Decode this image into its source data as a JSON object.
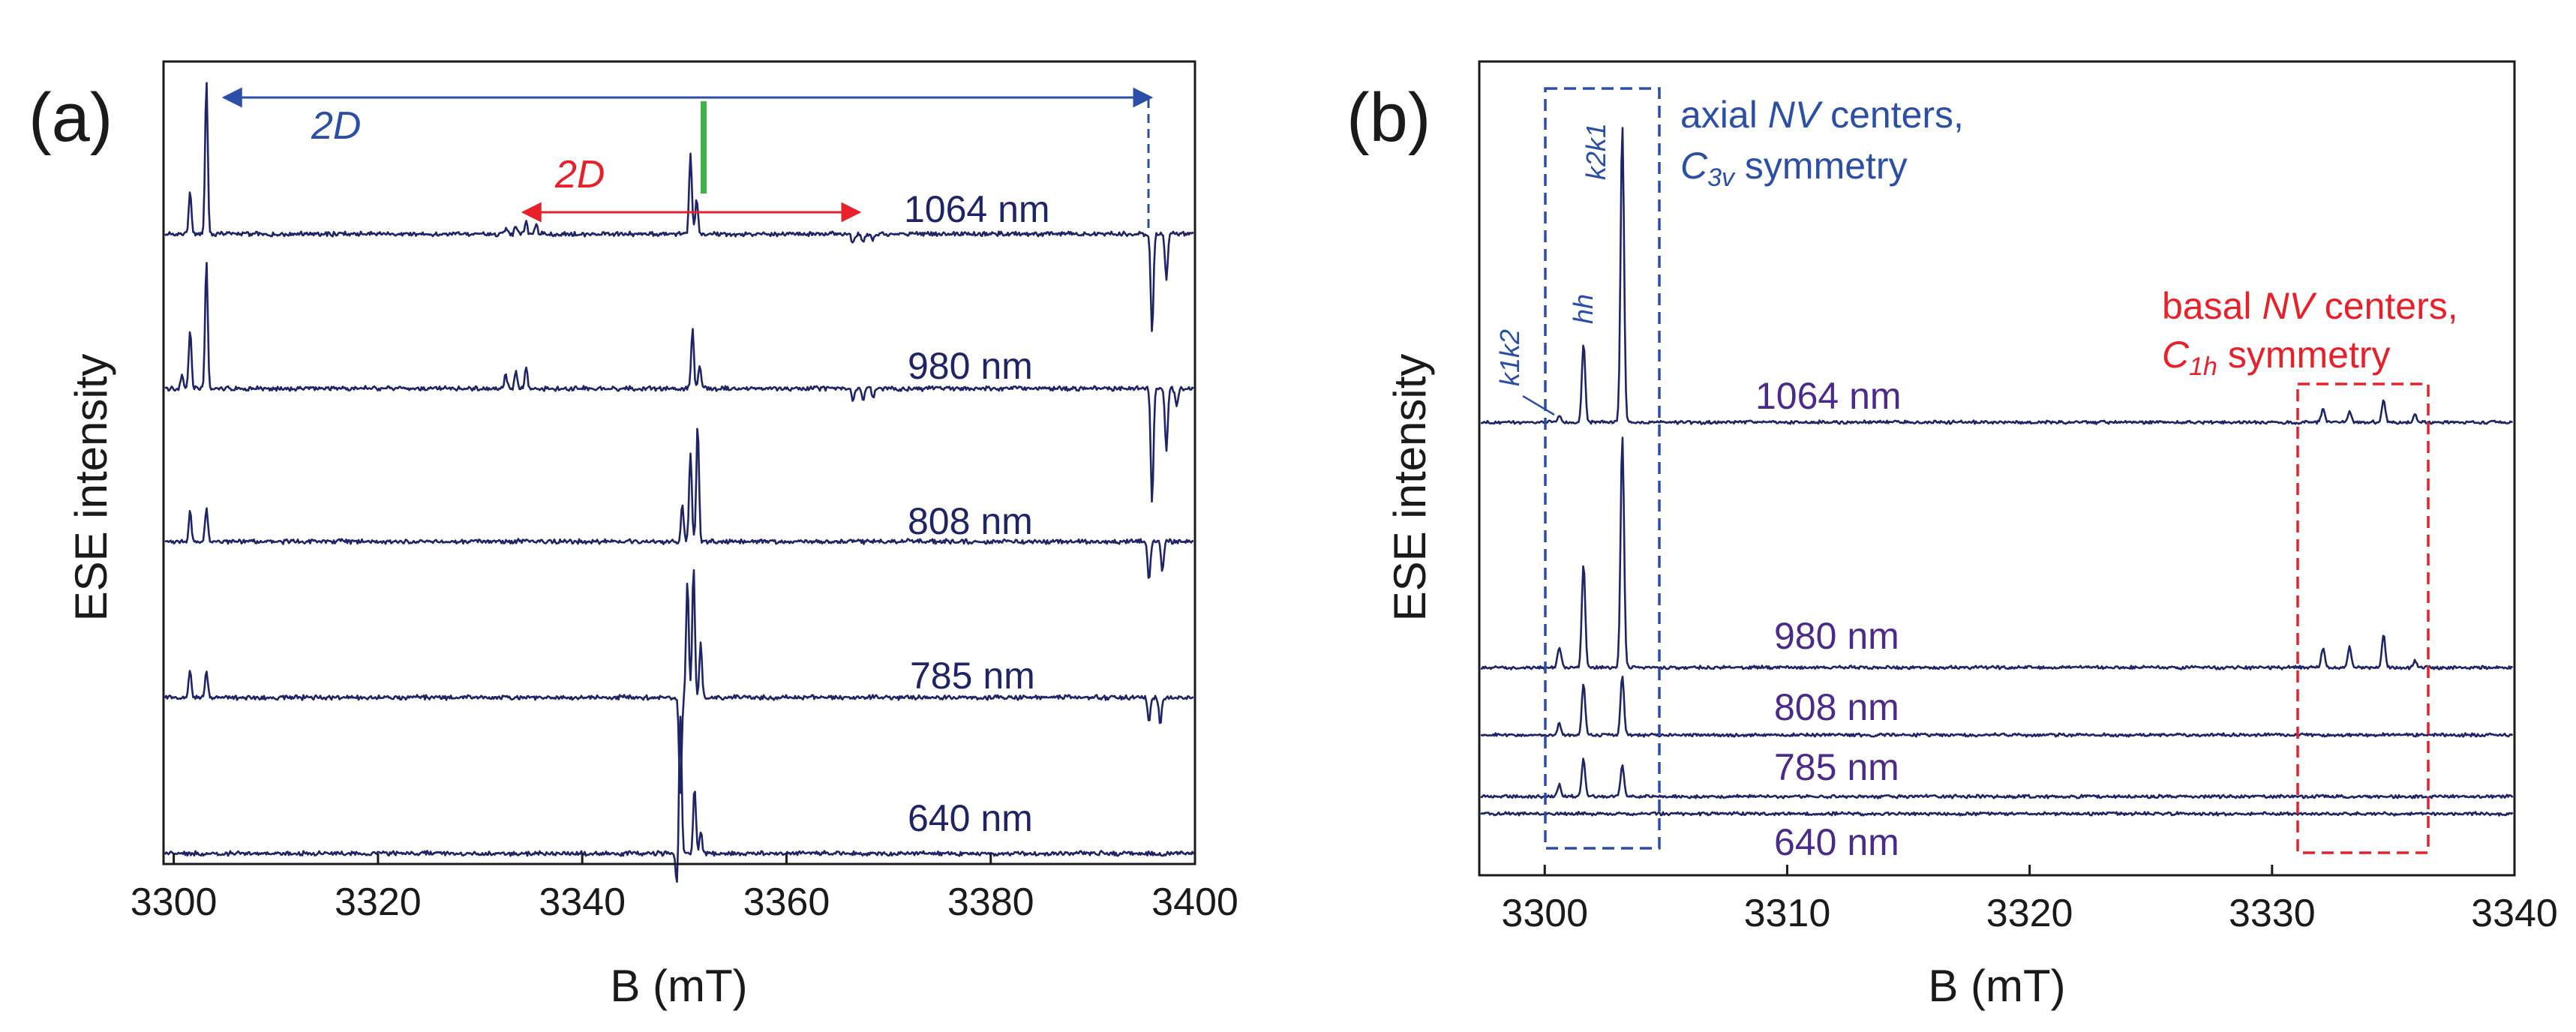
{
  "colors": {
    "trace": "#1f2466",
    "blue": "#2b4fa6",
    "red": "#e8202a",
    "green": "#3fb34a",
    "violet": "#4a2a8a",
    "axis": "#1a1a1a"
  },
  "chart_data": [
    {
      "panel": "(a)",
      "type": "line",
      "xlabel": "B (mT)",
      "ylabel": "ESE intensity",
      "xlim": [
        3299,
        3400
      ],
      "xticks": [
        "3300",
        "3320",
        "3340",
        "3360",
        "3380",
        "3400"
      ],
      "series": [
        {
          "name": "1064 nm",
          "label": "1064 nm",
          "peaks": [
            [
              3301.6,
              0.45
            ],
            [
              3303.2,
              1.7
            ],
            [
              3332.5,
              0.06
            ],
            [
              3333.5,
              0.08
            ],
            [
              3334.5,
              0.12
            ],
            [
              3335.5,
              0.1
            ],
            [
              3350.6,
              0.9
            ],
            [
              3351.2,
              0.4
            ],
            [
              3366.5,
              -0.1
            ],
            [
              3367.5,
              -0.08
            ],
            [
              3368.5,
              -0.06
            ],
            [
              3395.8,
              -1.1
            ],
            [
              3397.2,
              -0.5
            ]
          ]
        },
        {
          "name": "980 nm",
          "label": "980 nm",
          "peaks": [
            [
              3300.8,
              0.15
            ],
            [
              3301.6,
              0.65
            ],
            [
              3303.2,
              1.4
            ],
            [
              3332.5,
              0.16
            ],
            [
              3333.5,
              0.18
            ],
            [
              3334.5,
              0.24
            ],
            [
              3350.8,
              0.65
            ],
            [
              3351.5,
              0.25
            ],
            [
              3366.5,
              -0.14
            ],
            [
              3367.5,
              -0.12
            ],
            [
              3368.5,
              -0.1
            ],
            [
              3395.8,
              -1.3
            ],
            [
              3397.2,
              -0.7
            ],
            [
              3398.2,
              -0.2
            ]
          ]
        },
        {
          "name": "808 nm",
          "label": "808 nm",
          "peaks": [
            [
              3301.6,
              0.35
            ],
            [
              3303.2,
              0.38
            ],
            [
              3349.8,
              0.4
            ],
            [
              3350.6,
              1.0
            ],
            [
              3351.3,
              1.3
            ],
            [
              3395.5,
              -0.45
            ],
            [
              3396.8,
              -0.35
            ]
          ]
        },
        {
          "name": "785 nm",
          "label": "785 nm",
          "peaks": [
            [
              3301.6,
              0.3
            ],
            [
              3303.2,
              0.3
            ],
            [
              3349.6,
              -1.05
            ],
            [
              3350.3,
              1.3
            ],
            [
              3350.9,
              1.45
            ],
            [
              3351.6,
              0.6
            ],
            [
              3395.5,
              -0.28
            ],
            [
              3396.6,
              -0.3
            ]
          ]
        },
        {
          "name": "640 nm",
          "label": "640 nm",
          "peaks": [
            [
              3349.3,
              -0.4
            ],
            [
              3349.6,
              1.55
            ],
            [
              3351.0,
              0.75
            ],
            [
              3351.6,
              0.25
            ]
          ]
        }
      ],
      "annotations": {
        "panel_label": "(a)",
        "blue_arrow": {
          "label": "2D",
          "from": 3303,
          "to": 3396
        },
        "red_arrow": {
          "label": "2D",
          "from": 3335,
          "to": 3368
        },
        "green_marker": 3352
      }
    },
    {
      "panel": "(b)",
      "type": "line",
      "xlabel": "B (mT)",
      "ylabel": "ESE intensity",
      "xlim": [
        3297.3,
        3340
      ],
      "xticks": [
        "3300",
        "3310",
        "3320",
        "3330",
        "3340"
      ],
      "series": [
        {
          "name": "1064 nm",
          "label": "1064 nm",
          "peaks": [
            [
              3300.6,
              0.12
            ],
            [
              3301.6,
              1.45
            ],
            [
              3303.2,
              5.5
            ],
            [
              3332.1,
              0.25
            ],
            [
              3333.2,
              0.22
            ],
            [
              3334.6,
              0.42
            ],
            [
              3335.9,
              0.15
            ]
          ]
        },
        {
          "name": "980 nm",
          "label": "980 nm",
          "peaks": [
            [
              3300.6,
              0.4
            ],
            [
              3301.6,
              1.9
            ],
            [
              3303.2,
              4.3
            ],
            [
              3332.1,
              0.35
            ],
            [
              3333.2,
              0.38
            ],
            [
              3334.6,
              0.6
            ],
            [
              3335.9,
              0.12
            ]
          ]
        },
        {
          "name": "808 nm",
          "label": "808 nm",
          "peaks": [
            [
              3300.6,
              0.22
            ],
            [
              3301.6,
              0.95
            ],
            [
              3303.2,
              1.1
            ]
          ]
        },
        {
          "name": "785 nm",
          "label": "785 nm",
          "peaks": [
            [
              3300.6,
              0.22
            ],
            [
              3301.6,
              0.7
            ],
            [
              3303.2,
              0.6
            ]
          ]
        },
        {
          "name": "640 nm",
          "label": "640 nm",
          "peaks": []
        }
      ],
      "annotations": {
        "panel_label": "(b)",
        "axial_box": {
          "x_from": 3299.9,
          "x_to": 3304.5,
          "line1_pre": "axial ",
          "line1_italic": "NV",
          "line1_post": " centers,",
          "line2_main": "C",
          "line2_sub": "3v",
          "line2_post": " symmetry"
        },
        "basal_box": {
          "x_from": 3331.1,
          "x_to": 3336.8,
          "line1_pre": "basal ",
          "line1_italic": "NV",
          "line1_post": " centers,",
          "line2_main": "C",
          "line2_sub": "1h",
          "line2_post": " symmetry"
        },
        "peak_labels": [
          "k1k2",
          "hh",
          "k2k1"
        ]
      }
    }
  ]
}
